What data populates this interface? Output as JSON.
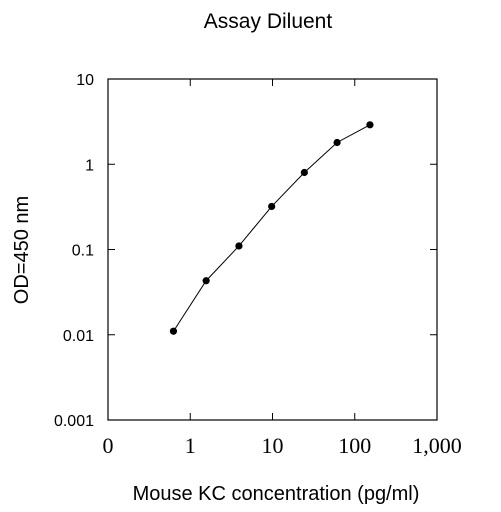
{
  "chart_data": {
    "type": "line",
    "title": "Assay Diluent",
    "xlabel": "Mouse KC concentration (pg/ml)",
    "ylabel": "OD=450 nm",
    "x_scale": "log",
    "y_scale": "log",
    "xlim": [
      0.1,
      1000
    ],
    "ylim": [
      0.001,
      10
    ],
    "x_tick_labels": [
      "0",
      "1",
      "10",
      "100",
      "1,000"
    ],
    "y_tick_labels": [
      "0.001",
      "0.01",
      "0.1",
      "1",
      "10"
    ],
    "grid": false,
    "legend": "none",
    "series": [
      {
        "x": [
          0.625,
          1.56,
          3.91,
          9.77,
          24.4,
          61.0,
          153
        ],
        "y": [
          0.011,
          0.043,
          0.11,
          0.32,
          0.8,
          1.8,
          2.9
        ]
      }
    ]
  }
}
